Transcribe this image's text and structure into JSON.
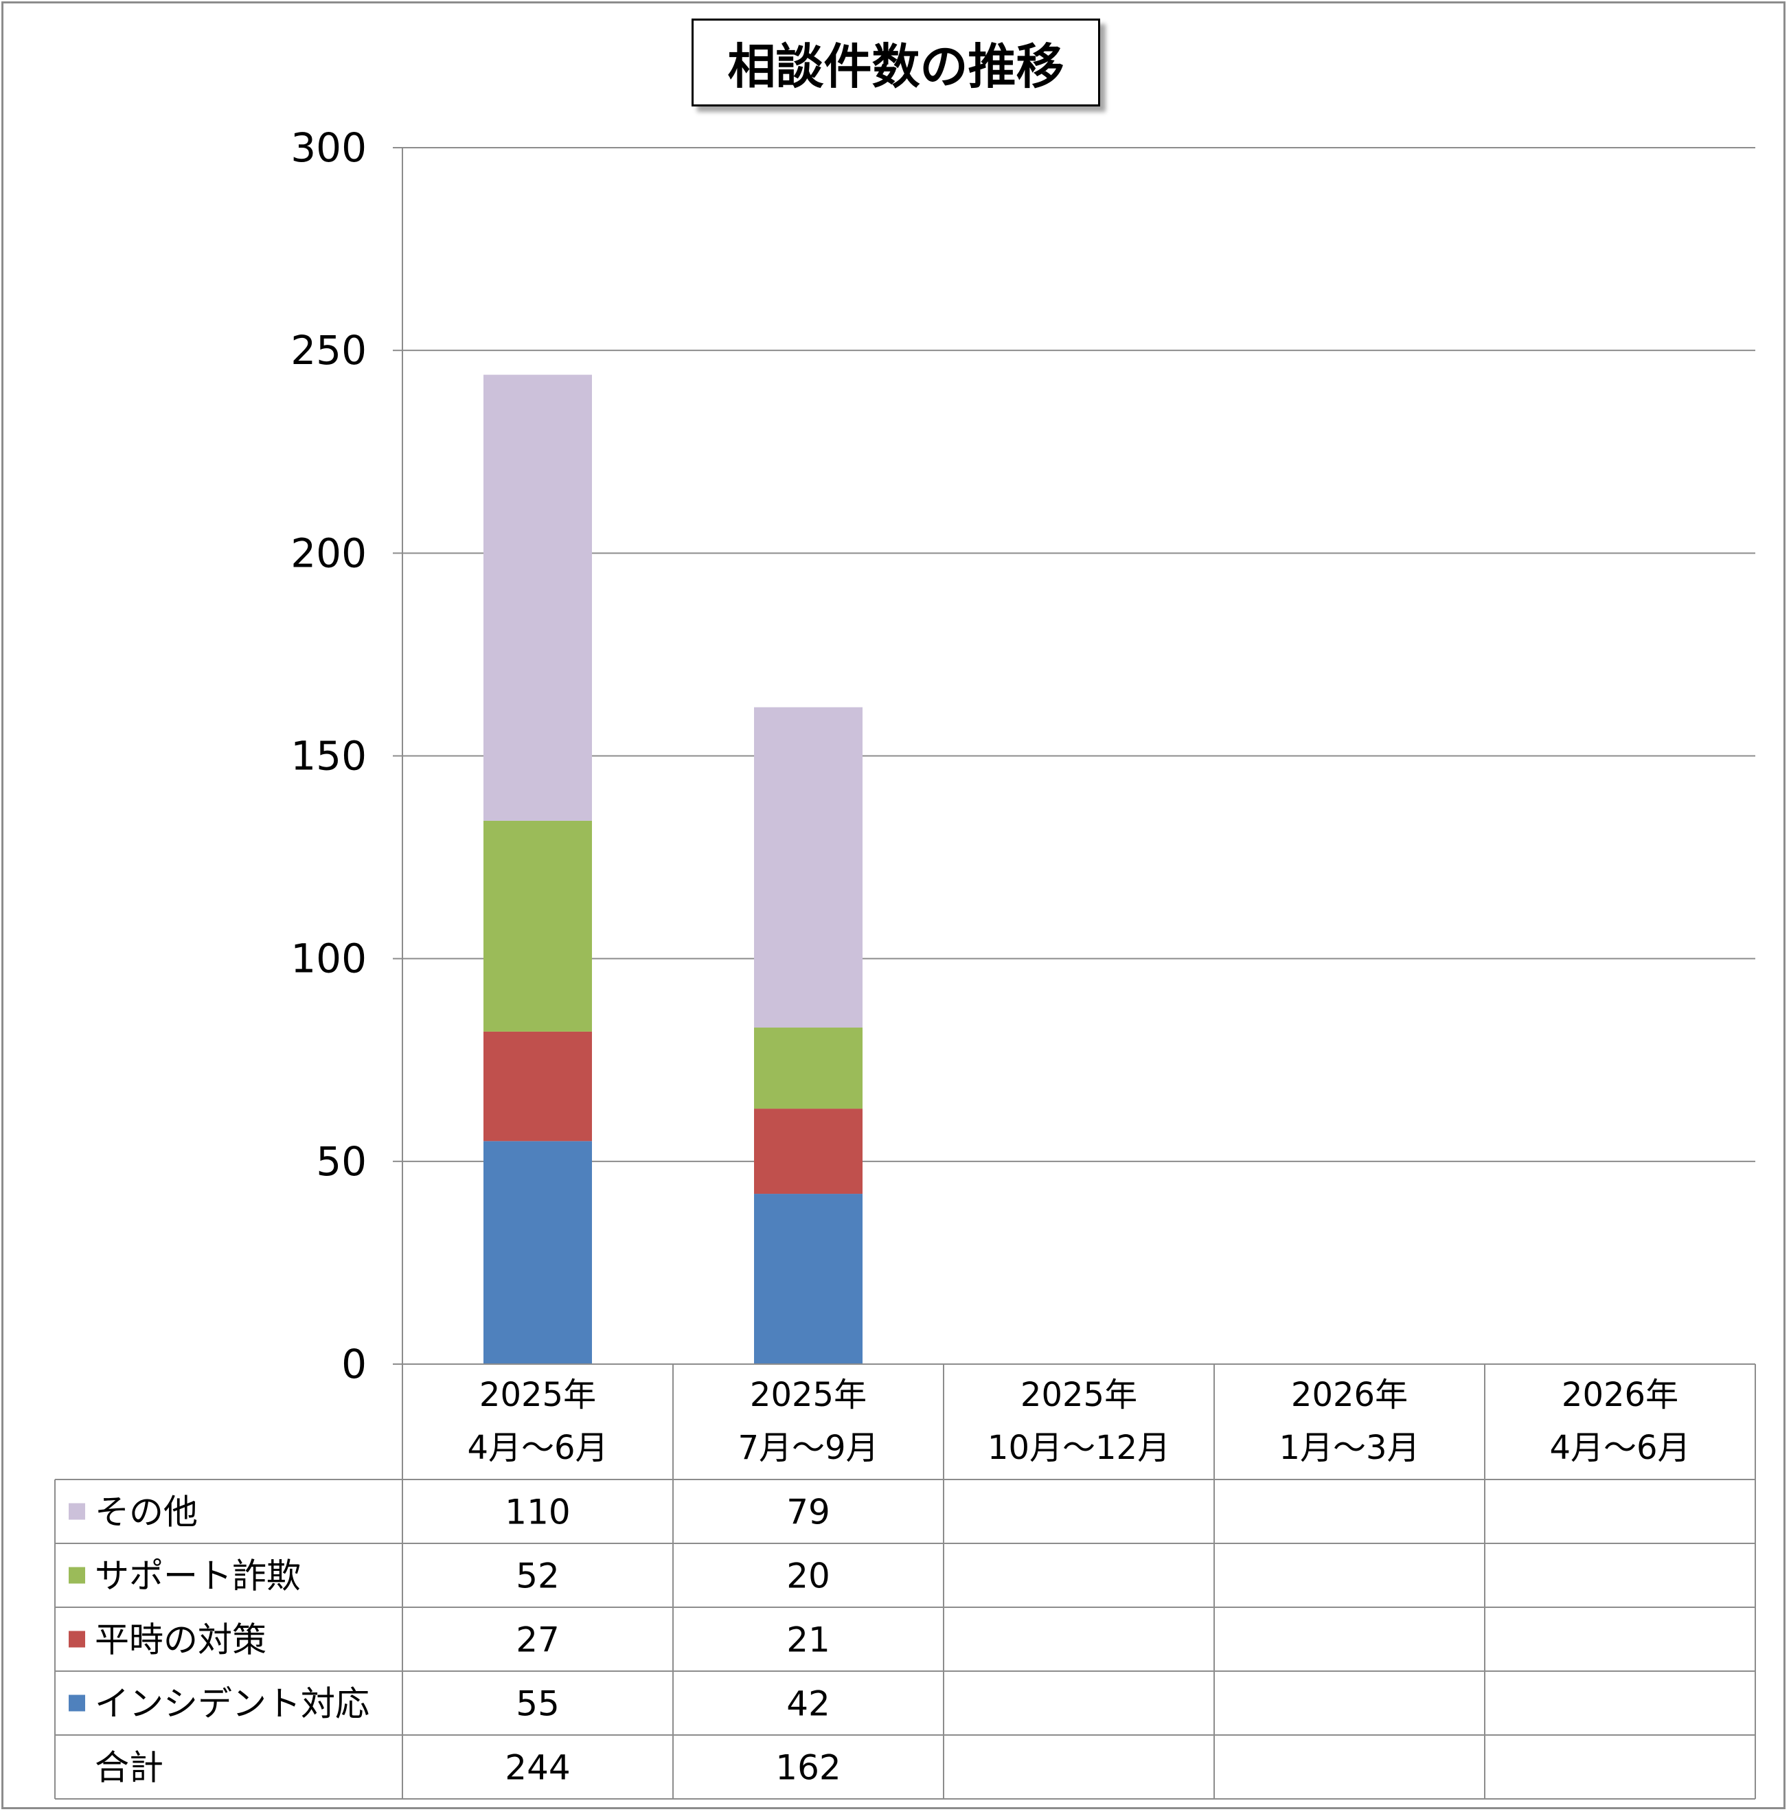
{
  "chart_data": {
    "type": "bar",
    "stacked": true,
    "title": "相談件数の推移",
    "categories": [
      [
        "2025年",
        "4月～6月"
      ],
      [
        "2025年",
        "7月～9月"
      ],
      [
        "2025年",
        "10月～12月"
      ],
      [
        "2026年",
        "1月～3月"
      ],
      [
        "2026年",
        "4月～6月"
      ]
    ],
    "series": [
      {
        "name": "インシデント対応",
        "color": "#4f81bd",
        "values": [
          55,
          42,
          null,
          null,
          null
        ]
      },
      {
        "name": "平時の対策",
        "color": "#c0504d",
        "values": [
          27,
          21,
          null,
          null,
          null
        ]
      },
      {
        "name": "サポート詐欺",
        "color": "#9bbb59",
        "values": [
          52,
          20,
          null,
          null,
          null
        ]
      },
      {
        "name": "その他",
        "color": "#ccc1da",
        "values": [
          110,
          79,
          null,
          null,
          null
        ]
      }
    ],
    "table_rows_order": [
      "その他",
      "サポート詐欺",
      "平時の対策",
      "インシデント対応"
    ],
    "total": {
      "name": "合計",
      "values": [
        244,
        162,
        null,
        null,
        null
      ]
    },
    "ylim": [
      0,
      300
    ],
    "yticks": [
      0,
      50,
      100,
      150,
      200,
      250,
      300
    ],
    "grid": true,
    "legend": "data-table"
  }
}
